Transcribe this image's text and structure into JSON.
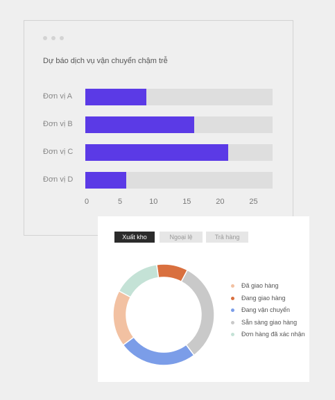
{
  "chart_card": {
    "chart_data": {
      "type": "bar",
      "orientation": "horizontal",
      "title": "Dự báo dịch vụ vận chuyển chậm trễ",
      "categories": [
        "Đơn vị A",
        "Đơn vị B",
        "Đơn vị C",
        "Đơn vị D"
      ],
      "values": [
        9,
        16,
        21,
        6
      ],
      "xlim": [
        0,
        27.5
      ],
      "x_ticks": [
        "0",
        "5",
        "10",
        "15",
        "20",
        "25"
      ],
      "colors": {
        "bar": "#5b3ae6",
        "track": "#dedede"
      },
      "grid": false
    }
  },
  "donut_card": {
    "tabs": [
      {
        "label": "Xuất kho",
        "active": true
      },
      {
        "label": "Ngoại lệ",
        "active": false
      },
      {
        "label": "Trả hàng",
        "active": false
      }
    ],
    "chart_data": {
      "type": "pie",
      "style": "donut",
      "legend_position": "right",
      "series": [
        {
          "name": "Đã giao hàng",
          "value": 18,
          "color": "#f2c1a2"
        },
        {
          "name": "Đang giao hàng",
          "value": 10,
          "color": "#d9703f"
        },
        {
          "name": "Đang vận chuyển",
          "value": 25,
          "color": "#7b9de8"
        },
        {
          "name": "Sẵn sàng giao hàng",
          "value": 32,
          "color": "#c9c9c9"
        },
        {
          "name": "Đơn hàng đã xác nhận",
          "value": 15,
          "color": "#c4e2d6"
        }
      ]
    }
  }
}
